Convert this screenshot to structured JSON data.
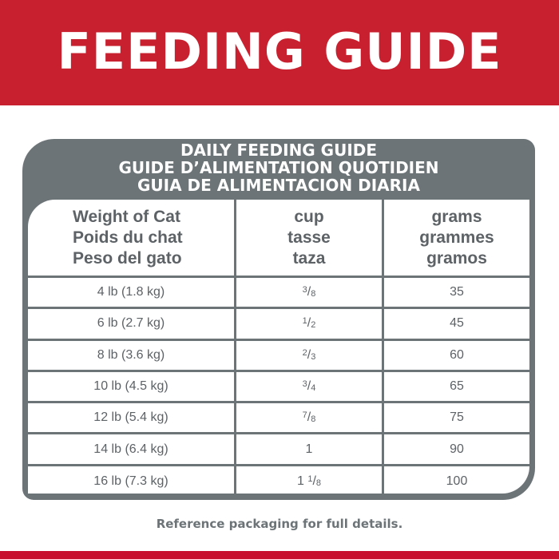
{
  "title": "FEEDING GUIDE",
  "box_heading": [
    "DAILY FEEDING GUIDE",
    "GUIDE D’ALIMENTATION QUOTIDIEN",
    "GUIA DE ALIMENTACION DIARIA"
  ],
  "columns": [
    [
      "Weight of Cat",
      "Poids du chat",
      "Peso del gato"
    ],
    [
      "cup",
      "tasse",
      "taza"
    ],
    [
      "grams",
      "grammes",
      "gramos"
    ]
  ],
  "rows": [
    {
      "weight": "4 lb (1.8 kg)",
      "cup": {
        "whole": "",
        "num": "3",
        "den": "8"
      },
      "grams": "35"
    },
    {
      "weight": "6 lb (2.7 kg)",
      "cup": {
        "whole": "",
        "num": "1",
        "den": "2"
      },
      "grams": "45"
    },
    {
      "weight": "8 lb (3.6 kg)",
      "cup": {
        "whole": "",
        "num": "2",
        "den": "3"
      },
      "grams": "60"
    },
    {
      "weight": "10 lb (4.5 kg)",
      "cup": {
        "whole": "",
        "num": "3",
        "den": "4"
      },
      "grams": "65"
    },
    {
      "weight": "12 lb (5.4 kg)",
      "cup": {
        "whole": "",
        "num": "7",
        "den": "8"
      },
      "grams": "75"
    },
    {
      "weight": "14 lb (6.4 kg)",
      "cup": {
        "whole": "1",
        "num": "",
        "den": ""
      },
      "grams": "90"
    },
    {
      "weight": "16 lb (7.3 kg)",
      "cup": {
        "whole": "1 ",
        "num": "1",
        "den": "8"
      },
      "grams": "100"
    }
  ],
  "note": "Reference packaging for full details.",
  "colors": {
    "brand_red": "#c8202f",
    "table_gray": "#6d7478",
    "text_gray": "#5d6266"
  }
}
